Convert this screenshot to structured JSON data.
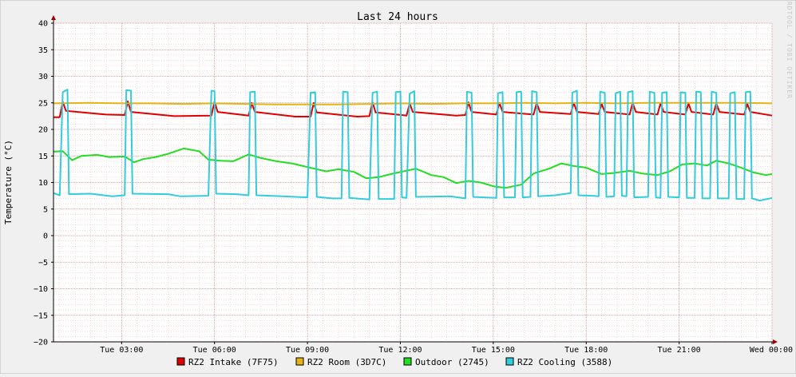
{
  "chart_data": {
    "type": "line",
    "title": "Last 24 hours",
    "ylabel": "Temperature (°C)",
    "xlabel": "",
    "watermark": "RRDTOOL / TOBI OETIKER",
    "ylim": [
      -20,
      40
    ],
    "yticks": [
      40,
      35,
      30,
      25,
      20,
      15,
      10,
      5,
      0,
      -5,
      -10,
      -15,
      -20
    ],
    "x_range_hours": [
      -23.2,
      0
    ],
    "xticks": [
      {
        "label": "Tue 03:00",
        "hour": -21
      },
      {
        "label": "Tue 06:00",
        "hour": -18
      },
      {
        "label": "Tue 09:00",
        "hour": -15
      },
      {
        "label": "Tue 12:00",
        "hour": -12
      },
      {
        "label": "Tue 15:00",
        "hour": -9
      },
      {
        "label": "Tue 18:00",
        "hour": -6
      },
      {
        "label": "Tue 21:00",
        "hour": -3
      },
      {
        "label": "Wed 00:00",
        "hour": 0
      }
    ],
    "grid": true,
    "legend_position": "bottom",
    "series": [
      {
        "name": "RZ2 Intake (7F75)",
        "color": "#e00000",
        "points": [
          [
            -23.2,
            22.3
          ],
          [
            -23.0,
            22.3
          ],
          [
            -22.9,
            25.2
          ],
          [
            -22.8,
            23.5
          ],
          [
            -21.5,
            22.8
          ],
          [
            -20.9,
            22.7
          ],
          [
            -20.8,
            25.3
          ],
          [
            -20.7,
            23.3
          ],
          [
            -19.3,
            22.5
          ],
          [
            -18.1,
            22.6
          ],
          [
            -18.0,
            25.2
          ],
          [
            -17.9,
            23.3
          ],
          [
            -16.9,
            22.6
          ],
          [
            -16.8,
            25.0
          ],
          [
            -16.7,
            23.3
          ],
          [
            -15.4,
            22.4
          ],
          [
            -14.9,
            22.4
          ],
          [
            -14.8,
            25.0
          ],
          [
            -14.7,
            23.2
          ],
          [
            -13.4,
            22.4
          ],
          [
            -13.0,
            22.5
          ],
          [
            -12.9,
            25.1
          ],
          [
            -12.8,
            23.2
          ],
          [
            -11.8,
            22.6
          ],
          [
            -11.7,
            24.9
          ],
          [
            -11.6,
            23.3
          ],
          [
            -10.2,
            22.6
          ],
          [
            -9.9,
            22.7
          ],
          [
            -9.8,
            25.1
          ],
          [
            -9.7,
            23.3
          ],
          [
            -8.9,
            22.8
          ],
          [
            -8.8,
            25.0
          ],
          [
            -8.7,
            23.3
          ],
          [
            -7.7,
            22.8
          ],
          [
            -7.6,
            25.0
          ],
          [
            -7.5,
            23.3
          ],
          [
            -6.5,
            22.9
          ],
          [
            -6.4,
            25.0
          ],
          [
            -6.3,
            23.3
          ],
          [
            -5.6,
            22.9
          ],
          [
            -5.5,
            24.8
          ],
          [
            -5.4,
            23.3
          ],
          [
            -4.6,
            22.8
          ],
          [
            -4.5,
            25.0
          ],
          [
            -4.4,
            23.3
          ],
          [
            -3.7,
            22.8
          ],
          [
            -3.6,
            24.9
          ],
          [
            -3.5,
            23.3
          ],
          [
            -2.8,
            22.8
          ],
          [
            -2.7,
            24.9
          ],
          [
            -2.6,
            23.3
          ],
          [
            -1.9,
            22.8
          ],
          [
            -1.8,
            24.9
          ],
          [
            -1.7,
            23.3
          ],
          [
            -0.9,
            22.8
          ],
          [
            -0.8,
            24.8
          ],
          [
            -0.7,
            23.3
          ],
          [
            0.0,
            22.6
          ]
        ]
      },
      {
        "name": "RZ2 Room (3D7C)",
        "color": "#e6b412",
        "points": [
          [
            -23.2,
            24.9
          ],
          [
            -22.0,
            25.0
          ],
          [
            -21.0,
            24.9
          ],
          [
            -20.0,
            24.9
          ],
          [
            -19.0,
            24.8
          ],
          [
            -18.0,
            24.9
          ],
          [
            -17.0,
            24.8
          ],
          [
            -16.0,
            24.7
          ],
          [
            -15.0,
            24.7
          ],
          [
            -14.0,
            24.7
          ],
          [
            -13.0,
            24.8
          ],
          [
            -12.0,
            24.9
          ],
          [
            -11.0,
            24.8
          ],
          [
            -10.0,
            24.9
          ],
          [
            -9.0,
            24.9
          ],
          [
            -8.0,
            25.0
          ],
          [
            -7.0,
            24.9
          ],
          [
            -6.0,
            25.0
          ],
          [
            -5.0,
            24.9
          ],
          [
            -4.0,
            25.0
          ],
          [
            -3.0,
            25.0
          ],
          [
            -2.0,
            25.0
          ],
          [
            -1.0,
            25.0
          ],
          [
            0.0,
            24.9
          ]
        ]
      },
      {
        "name": "Outdoor (2745)",
        "color": "#22dd22",
        "points": [
          [
            -23.2,
            15.8
          ],
          [
            -22.9,
            15.9
          ],
          [
            -22.6,
            14.2
          ],
          [
            -22.3,
            15.0
          ],
          [
            -21.8,
            15.2
          ],
          [
            -21.4,
            14.8
          ],
          [
            -20.9,
            14.9
          ],
          [
            -20.6,
            13.8
          ],
          [
            -20.3,
            14.4
          ],
          [
            -19.9,
            14.8
          ],
          [
            -19.5,
            15.4
          ],
          [
            -19.0,
            16.4
          ],
          [
            -18.5,
            15.9
          ],
          [
            -18.2,
            14.3
          ],
          [
            -17.8,
            14.1
          ],
          [
            -17.4,
            14.0
          ],
          [
            -16.9,
            15.3
          ],
          [
            -16.5,
            14.6
          ],
          [
            -16.0,
            14.0
          ],
          [
            -15.5,
            13.6
          ],
          [
            -15.0,
            12.9
          ],
          [
            -14.4,
            12.1
          ],
          [
            -14.0,
            12.5
          ],
          [
            -13.5,
            12.0
          ],
          [
            -13.1,
            10.8
          ],
          [
            -12.7,
            11.0
          ],
          [
            -12.3,
            11.6
          ],
          [
            -11.9,
            12.1
          ],
          [
            -11.5,
            12.6
          ],
          [
            -11.0,
            11.4
          ],
          [
            -10.6,
            11.0
          ],
          [
            -10.2,
            9.9
          ],
          [
            -9.8,
            10.3
          ],
          [
            -9.4,
            10.0
          ],
          [
            -9.0,
            9.3
          ],
          [
            -8.6,
            9.0
          ],
          [
            -8.1,
            9.6
          ],
          [
            -7.7,
            11.7
          ],
          [
            -7.2,
            12.6
          ],
          [
            -6.8,
            13.6
          ],
          [
            -6.4,
            13.1
          ],
          [
            -6.0,
            12.8
          ],
          [
            -5.5,
            11.6
          ],
          [
            -5.1,
            11.8
          ],
          [
            -4.6,
            12.2
          ],
          [
            -4.2,
            11.7
          ],
          [
            -3.7,
            11.4
          ],
          [
            -3.3,
            12.1
          ],
          [
            -2.9,
            13.4
          ],
          [
            -2.5,
            13.6
          ],
          [
            -2.1,
            13.2
          ],
          [
            -1.8,
            14.1
          ],
          [
            -1.4,
            13.6
          ],
          [
            -1.0,
            12.8
          ],
          [
            -0.6,
            11.9
          ],
          [
            -0.2,
            11.4
          ],
          [
            0.0,
            11.6
          ]
        ]
      },
      {
        "name": "RZ2 Cooling (3588)",
        "color": "#33ccdd",
        "points": [
          [
            -23.2,
            8.0
          ],
          [
            -23.0,
            7.6
          ],
          [
            -22.9,
            27.0
          ],
          [
            -22.75,
            27.5
          ],
          [
            -22.7,
            7.8
          ],
          [
            -22.0,
            7.9
          ],
          [
            -21.3,
            7.4
          ],
          [
            -20.9,
            7.6
          ],
          [
            -20.85,
            27.4
          ],
          [
            -20.7,
            27.3
          ],
          [
            -20.65,
            7.9
          ],
          [
            -19.5,
            7.8
          ],
          [
            -19.1,
            7.4
          ],
          [
            -18.2,
            7.5
          ],
          [
            -18.1,
            27.3
          ],
          [
            -18.0,
            27.2
          ],
          [
            -17.95,
            7.9
          ],
          [
            -17.3,
            7.8
          ],
          [
            -16.9,
            7.6
          ],
          [
            -16.85,
            27.0
          ],
          [
            -16.7,
            27.1
          ],
          [
            -16.65,
            7.6
          ],
          [
            -15.8,
            7.4
          ],
          [
            -15.0,
            7.2
          ],
          [
            -14.9,
            26.9
          ],
          [
            -14.75,
            27.0
          ],
          [
            -14.7,
            7.3
          ],
          [
            -14.2,
            7.0
          ],
          [
            -13.9,
            7.0
          ],
          [
            -13.85,
            27.1
          ],
          [
            -13.7,
            27.0
          ],
          [
            -13.65,
            7.1
          ],
          [
            -13.0,
            6.8
          ],
          [
            -12.9,
            26.9
          ],
          [
            -12.75,
            27.1
          ],
          [
            -12.7,
            6.9
          ],
          [
            -12.2,
            6.9
          ],
          [
            -12.15,
            27.0
          ],
          [
            -12.0,
            27.1
          ],
          [
            -11.95,
            7.2
          ],
          [
            -11.8,
            7.1
          ],
          [
            -11.7,
            26.7
          ],
          [
            -11.55,
            27.2
          ],
          [
            -11.5,
            7.3
          ],
          [
            -10.4,
            7.4
          ],
          [
            -9.9,
            7.0
          ],
          [
            -9.85,
            27.1
          ],
          [
            -9.7,
            26.9
          ],
          [
            -9.65,
            7.3
          ],
          [
            -9.3,
            7.2
          ],
          [
            -8.9,
            7.1
          ],
          [
            -8.85,
            26.8
          ],
          [
            -8.7,
            27.0
          ],
          [
            -8.65,
            7.2
          ],
          [
            -8.3,
            7.2
          ],
          [
            -8.25,
            27.0
          ],
          [
            -8.1,
            27.1
          ],
          [
            -8.05,
            7.2
          ],
          [
            -7.8,
            7.3
          ],
          [
            -7.75,
            27.2
          ],
          [
            -7.6,
            27.0
          ],
          [
            -7.55,
            7.4
          ],
          [
            -7.0,
            7.6
          ],
          [
            -6.5,
            8.0
          ],
          [
            -6.45,
            26.9
          ],
          [
            -6.3,
            27.3
          ],
          [
            -6.25,
            7.6
          ],
          [
            -5.8,
            7.5
          ],
          [
            -5.6,
            7.4
          ],
          [
            -5.55,
            27.1
          ],
          [
            -5.4,
            26.9
          ],
          [
            -5.35,
            7.3
          ],
          [
            -5.1,
            7.4
          ],
          [
            -5.05,
            26.8
          ],
          [
            -4.9,
            27.1
          ],
          [
            -4.85,
            7.5
          ],
          [
            -4.7,
            7.4
          ],
          [
            -4.65,
            27.0
          ],
          [
            -4.5,
            27.2
          ],
          [
            -4.45,
            7.2
          ],
          [
            -4.0,
            7.3
          ],
          [
            -3.95,
            27.1
          ],
          [
            -3.8,
            26.9
          ],
          [
            -3.75,
            7.2
          ],
          [
            -3.6,
            7.1
          ],
          [
            -3.55,
            26.9
          ],
          [
            -3.4,
            27.0
          ],
          [
            -3.35,
            7.3
          ],
          [
            -3.0,
            7.2
          ],
          [
            -2.95,
            27.0
          ],
          [
            -2.8,
            26.9
          ],
          [
            -2.75,
            7.1
          ],
          [
            -2.5,
            7.1
          ],
          [
            -2.45,
            27.1
          ],
          [
            -2.3,
            27.0
          ],
          [
            -2.25,
            7.0
          ],
          [
            -2.0,
            7.0
          ],
          [
            -1.95,
            27.1
          ],
          [
            -1.8,
            26.9
          ],
          [
            -1.75,
            7.0
          ],
          [
            -1.4,
            7.0
          ],
          [
            -1.35,
            26.8
          ],
          [
            -1.2,
            27.0
          ],
          [
            -1.15,
            6.9
          ],
          [
            -0.9,
            6.9
          ],
          [
            -0.85,
            27.0
          ],
          [
            -0.7,
            27.1
          ],
          [
            -0.65,
            7.0
          ],
          [
            -0.4,
            6.6
          ],
          [
            0.0,
            7.1
          ]
        ]
      }
    ]
  }
}
